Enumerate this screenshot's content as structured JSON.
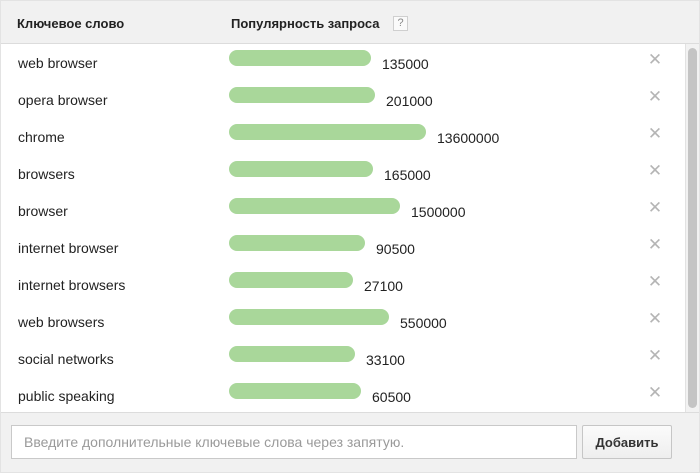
{
  "header": {
    "keyword_label": "Ключевое слово",
    "popularity_label": "Популярность запроса",
    "help_label": "?"
  },
  "remove_glyph": "✕",
  "rows": [
    {
      "keyword": "web browser",
      "value": "135000",
      "fraction": 0.72
    },
    {
      "keyword": "opera browser",
      "value": "201000",
      "fraction": 0.74
    },
    {
      "keyword": "chrome",
      "value": "13600000",
      "fraction": 1.0
    },
    {
      "keyword": "browsers",
      "value": "165000",
      "fraction": 0.73
    },
    {
      "keyword": "browser",
      "value": "1500000",
      "fraction": 0.87
    },
    {
      "keyword": "internet browser",
      "value": "90500",
      "fraction": 0.69
    },
    {
      "keyword": "internet browsers",
      "value": "27100",
      "fraction": 0.63
    },
    {
      "keyword": "web browsers",
      "value": "550000",
      "fraction": 0.81
    },
    {
      "keyword": "social networks",
      "value": "33100",
      "fraction": 0.64
    },
    {
      "keyword": "public speaking",
      "value": "60500",
      "fraction": 0.67
    }
  ],
  "footer": {
    "input_placeholder": "Введите дополнительные ключевые слова через запятую.",
    "input_value": "",
    "add_label": "Добавить"
  },
  "colors": {
    "bar": "#a9d79a",
    "header_bg": "#f1f1f1",
    "remove_icon": "#b5b5b5"
  },
  "icons": {
    "help": "question-icon",
    "remove": "close-icon"
  }
}
